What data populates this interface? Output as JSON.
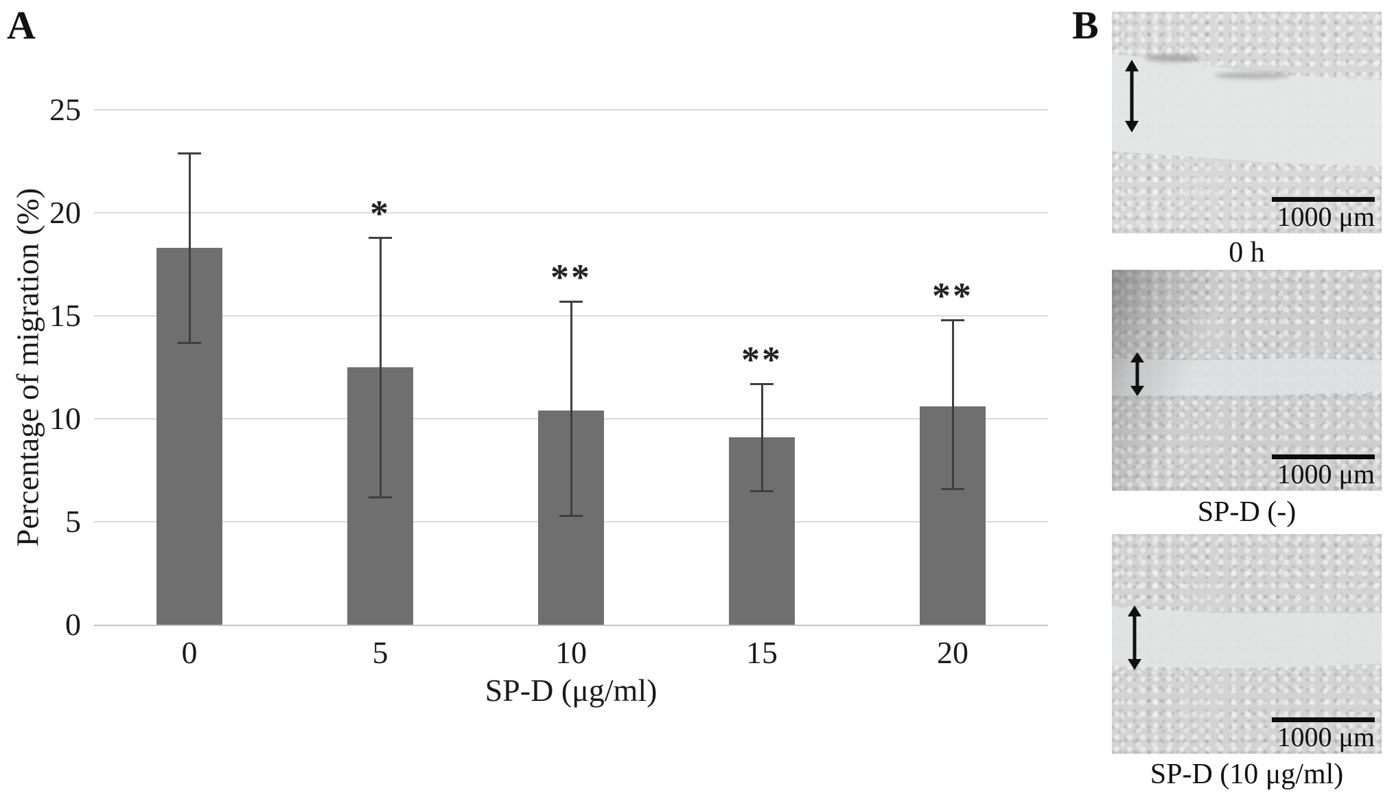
{
  "figure": {
    "panel_a_label": "A",
    "panel_b_label": "B"
  },
  "chart_data": {
    "type": "bar",
    "title": "",
    "xlabel": "SP-D (μg/ml)",
    "ylabel": "Percentage of migration (%)",
    "categories": [
      "0",
      "5",
      "10",
      "15",
      "20"
    ],
    "values": [
      18.3,
      12.5,
      10.4,
      9.1,
      10.6
    ],
    "error_upper": [
      22.9,
      18.8,
      15.7,
      11.7,
      14.8
    ],
    "error_lower": [
      13.7,
      6.2,
      5.3,
      6.5,
      6.6
    ],
    "significance": [
      "",
      "*",
      "**",
      "**",
      "**"
    ],
    "ylim": [
      0,
      25
    ],
    "yticks": [
      0,
      5,
      10,
      15,
      20,
      25
    ],
    "grid": true,
    "legend": "none",
    "bar_color": "#6f6f6f"
  },
  "panel_b": {
    "images": [
      {
        "caption": "0 h",
        "scale_label": "1000 μm",
        "arrow_icon": "double-arrow-vertical"
      },
      {
        "caption": "SP-D (-)",
        "scale_label": "1000 μm",
        "arrow_icon": "double-arrow-vertical"
      },
      {
        "caption": "SP-D (10 μg/ml)",
        "scale_label": "1000 μm",
        "arrow_icon": "double-arrow-vertical"
      }
    ]
  }
}
